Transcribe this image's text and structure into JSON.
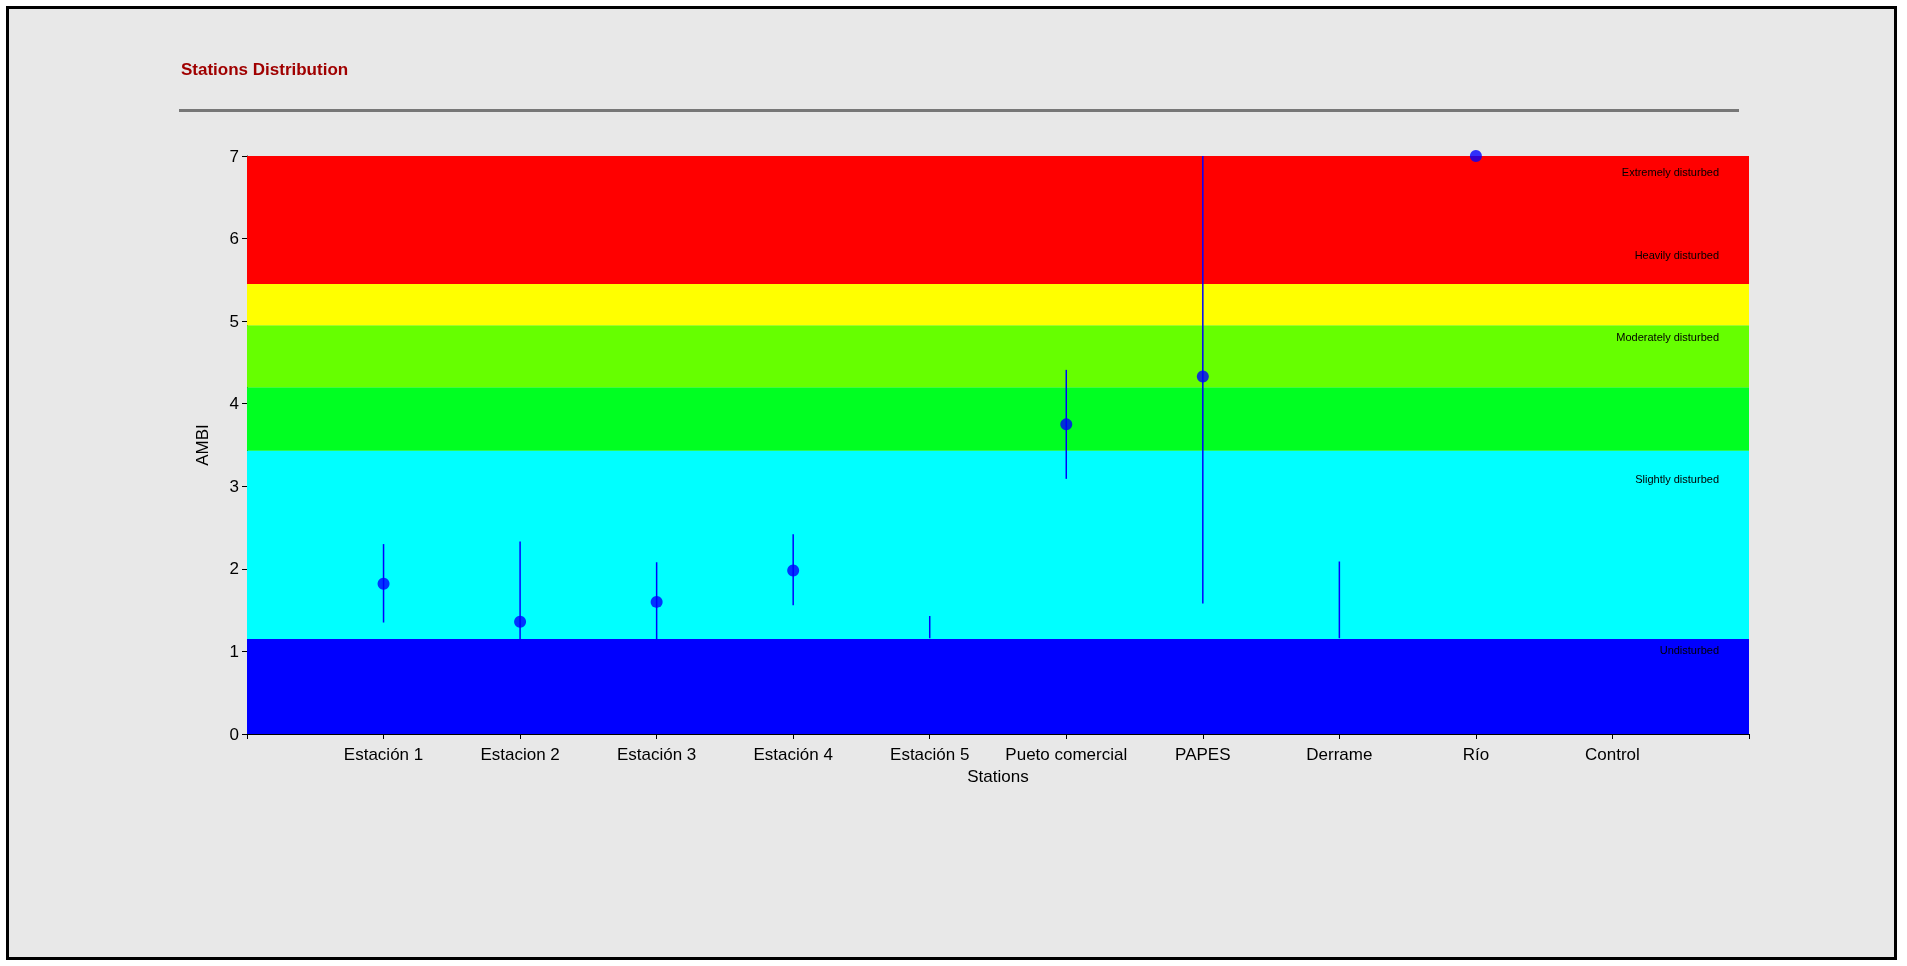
{
  "chart_data": {
    "type": "scatter",
    "title": "Stations Distribution",
    "xlabel": "Stations",
    "ylabel": "AMBI",
    "categories": [
      null,
      "Estación 1",
      "Estacion 2",
      "Estación 3",
      "Estación 4",
      "Estación 5",
      "Pueto comercial",
      "PAPES",
      "Derrame",
      "Río",
      "Control",
      null
    ],
    "series": [
      {
        "color": "#0000ff",
        "marker": "circle",
        "values": [
          null,
          1.82,
          1.36,
          1.6,
          1.98,
          null,
          3.75,
          4.33,
          null,
          7,
          null,
          null
        ],
        "errors": [
          null,
          [
            1.35,
            2.3
          ],
          [
            1.13,
            2.33
          ],
          [
            1.14,
            2.08
          ],
          [
            1.56,
            2.42
          ],
          null,
          [
            3.09,
            4.41
          ],
          [
            1.58,
            7
          ],
          null,
          null,
          null,
          null
        ]
      },
      {
        "type": "line",
        "color": "#0000ff",
        "marker": "none",
        "x": [
          "Estación 5",
          "Estación 5"
        ],
        "values": [
          1.16,
          1.43
        ]
      },
      {
        "type": "line",
        "color": "#0000ff",
        "marker": "none",
        "x": [
          "Derrame",
          "Derrame"
        ],
        "values": [
          1.16,
          2.09
        ]
      }
    ],
    "ylim": [
      0,
      7
    ],
    "yticks": [
      0,
      1,
      2,
      3,
      4,
      5,
      6,
      7
    ],
    "bands": [
      {
        "axis": "y",
        "from": 0,
        "to": 1.15,
        "color": "#0000ff"
      },
      {
        "axis": "y",
        "from": 1.15,
        "to": 3.43,
        "color": "#00ffff"
      },
      {
        "axis": "y",
        "from": 3.43,
        "to": 4.2,
        "color": "#00ff22"
      },
      {
        "axis": "y",
        "from": 4.2,
        "to": 4.95,
        "color": "#66ff00"
      },
      {
        "axis": "y",
        "from": 4.95,
        "to": 5.45,
        "color": "#ffff00"
      },
      {
        "axis": "y",
        "from": 5.45,
        "to": 7,
        "color": "#ff0000"
      }
    ],
    "annotations": [
      "Extremely disturbed",
      "Heavily disturbed",
      "Moderately disturbed",
      "Slightly disturbed",
      "Undisturbed"
    ]
  }
}
